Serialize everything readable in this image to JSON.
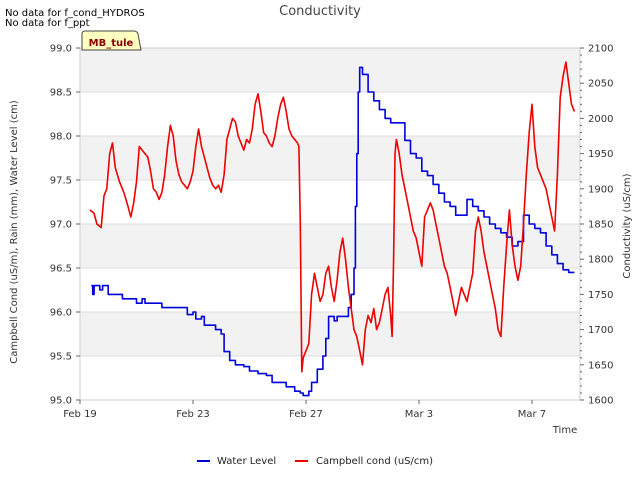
{
  "notes": [
    "No data for f_cond_HYDROS",
    "No data for f_ppt"
  ],
  "site_label": "MB_tule",
  "chart_data": {
    "type": "line",
    "title": "Conductivity",
    "xlabel": "Time",
    "ylabel_left": "Campbell Cond (uS/m), Rain (mm), Water Level (cm)",
    "ylabel_right": "Conductivity (uS/cm)",
    "x_tick_labels": [
      "Feb 19",
      "Feb 23",
      "Feb 27",
      "Mar 3",
      "Mar 7"
    ],
    "x_tick_days": [
      0,
      4,
      8,
      12,
      16
    ],
    "xlim_days": [
      0,
      17.7
    ],
    "ylim_left": [
      95.0,
      99.0
    ],
    "y_ticks_left": [
      "95.0",
      "95.5",
      "96.0",
      "96.5",
      "97.0",
      "97.5",
      "98.0",
      "98.5",
      "99.0"
    ],
    "ylim_right": [
      1600,
      2100
    ],
    "y_ticks_right": [
      "1600",
      "1650",
      "1700",
      "1750",
      "1800",
      "1850",
      "1900",
      "1950",
      "2000",
      "2050",
      "2100"
    ],
    "series": [
      {
        "name": "Water Level",
        "color": "#0000dd",
        "axis": "left",
        "points": [
          [
            0.4,
            96.3
          ],
          [
            0.45,
            96.2
          ],
          [
            0.5,
            96.3
          ],
          [
            0.6,
            96.3
          ],
          [
            0.7,
            96.25
          ],
          [
            0.8,
            96.3
          ],
          [
            0.9,
            96.3
          ],
          [
            1.0,
            96.2
          ],
          [
            1.2,
            96.2
          ],
          [
            1.5,
            96.15
          ],
          [
            1.6,
            96.15
          ],
          [
            1.8,
            96.15
          ],
          [
            2.0,
            96.1
          ],
          [
            2.2,
            96.15
          ],
          [
            2.3,
            96.1
          ],
          [
            2.5,
            96.1
          ],
          [
            2.8,
            96.1
          ],
          [
            2.9,
            96.05
          ],
          [
            3.3,
            96.05
          ],
          [
            3.6,
            96.05
          ],
          [
            3.8,
            95.97
          ],
          [
            4.0,
            96.0
          ],
          [
            4.1,
            95.92
          ],
          [
            4.3,
            95.95
          ],
          [
            4.4,
            95.85
          ],
          [
            4.6,
            95.85
          ],
          [
            4.8,
            95.8
          ],
          [
            5.0,
            95.75
          ],
          [
            5.1,
            95.55
          ],
          [
            5.3,
            95.45
          ],
          [
            5.5,
            95.4
          ],
          [
            5.8,
            95.38
          ],
          [
            6.0,
            95.33
          ],
          [
            6.3,
            95.3
          ],
          [
            6.6,
            95.28
          ],
          [
            6.8,
            95.2
          ],
          [
            7.0,
            95.2
          ],
          [
            7.3,
            95.15
          ],
          [
            7.6,
            95.1
          ],
          [
            7.8,
            95.08
          ],
          [
            7.9,
            95.05
          ],
          [
            8.0,
            95.05
          ],
          [
            8.1,
            95.1
          ],
          [
            8.2,
            95.2
          ],
          [
            8.4,
            95.35
          ],
          [
            8.6,
            95.5
          ],
          [
            8.7,
            95.7
          ],
          [
            8.8,
            95.95
          ],
          [
            9.0,
            95.9
          ],
          [
            9.1,
            95.95
          ],
          [
            9.3,
            95.95
          ],
          [
            9.5,
            96.05
          ],
          [
            9.6,
            96.2
          ],
          [
            9.7,
            96.5
          ],
          [
            9.75,
            97.2
          ],
          [
            9.8,
            97.8
          ],
          [
            9.85,
            98.5
          ],
          [
            9.9,
            98.78
          ],
          [
            10.0,
            98.7
          ],
          [
            10.2,
            98.5
          ],
          [
            10.4,
            98.4
          ],
          [
            10.6,
            98.3
          ],
          [
            10.8,
            98.2
          ],
          [
            11.0,
            98.15
          ],
          [
            11.3,
            98.15
          ],
          [
            11.5,
            97.95
          ],
          [
            11.7,
            97.8
          ],
          [
            11.9,
            97.75
          ],
          [
            12.1,
            97.6
          ],
          [
            12.3,
            97.55
          ],
          [
            12.5,
            97.45
          ],
          [
            12.7,
            97.35
          ],
          [
            12.9,
            97.25
          ],
          [
            13.1,
            97.2
          ],
          [
            13.3,
            97.1
          ],
          [
            13.5,
            97.1
          ],
          [
            13.7,
            97.28
          ],
          [
            13.9,
            97.2
          ],
          [
            14.1,
            97.15
          ],
          [
            14.3,
            97.08
          ],
          [
            14.5,
            97.0
          ],
          [
            14.7,
            96.95
          ],
          [
            14.9,
            96.9
          ],
          [
            15.1,
            96.85
          ],
          [
            15.3,
            96.75
          ],
          [
            15.5,
            96.8
          ],
          [
            15.7,
            97.1
          ],
          [
            15.9,
            97.0
          ],
          [
            16.1,
            96.95
          ],
          [
            16.3,
            96.9
          ],
          [
            16.5,
            96.75
          ],
          [
            16.7,
            96.65
          ],
          [
            16.9,
            96.55
          ],
          [
            17.1,
            96.48
          ],
          [
            17.3,
            96.45
          ],
          [
            17.5,
            96.45
          ]
        ]
      },
      {
        "name": "Campbell cond (uS/cm)",
        "color": "#ee0000",
        "axis": "right",
        "points": [
          [
            0.35,
            1870
          ],
          [
            0.5,
            1865
          ],
          [
            0.6,
            1850
          ],
          [
            0.75,
            1845
          ],
          [
            0.85,
            1890
          ],
          [
            0.95,
            1900
          ],
          [
            1.05,
            1950
          ],
          [
            1.15,
            1965
          ],
          [
            1.25,
            1930
          ],
          [
            1.4,
            1910
          ],
          [
            1.55,
            1895
          ],
          [
            1.7,
            1875
          ],
          [
            1.8,
            1860
          ],
          [
            1.9,
            1880
          ],
          [
            2.0,
            1910
          ],
          [
            2.1,
            1960
          ],
          [
            2.2,
            1955
          ],
          [
            2.3,
            1950
          ],
          [
            2.4,
            1945
          ],
          [
            2.5,
            1925
          ],
          [
            2.6,
            1900
          ],
          [
            2.7,
            1895
          ],
          [
            2.8,
            1885
          ],
          [
            2.9,
            1895
          ],
          [
            3.0,
            1920
          ],
          [
            3.1,
            1960
          ],
          [
            3.2,
            1990
          ],
          [
            3.3,
            1975
          ],
          [
            3.4,
            1940
          ],
          [
            3.5,
            1920
          ],
          [
            3.6,
            1910
          ],
          [
            3.7,
            1905
          ],
          [
            3.8,
            1900
          ],
          [
            3.9,
            1910
          ],
          [
            4.0,
            1925
          ],
          [
            4.1,
            1960
          ],
          [
            4.2,
            1985
          ],
          [
            4.3,
            1960
          ],
          [
            4.4,
            1945
          ],
          [
            4.5,
            1930
          ],
          [
            4.6,
            1915
          ],
          [
            4.7,
            1905
          ],
          [
            4.8,
            1900
          ],
          [
            4.9,
            1905
          ],
          [
            5.0,
            1895
          ],
          [
            5.1,
            1920
          ],
          [
            5.2,
            1970
          ],
          [
            5.3,
            1985
          ],
          [
            5.4,
            2000
          ],
          [
            5.5,
            1995
          ],
          [
            5.6,
            1975
          ],
          [
            5.7,
            1965
          ],
          [
            5.8,
            1955
          ],
          [
            5.9,
            1970
          ],
          [
            6.0,
            1965
          ],
          [
            6.1,
            1985
          ],
          [
            6.2,
            2020
          ],
          [
            6.3,
            2035
          ],
          [
            6.4,
            2010
          ],
          [
            6.5,
            1980
          ],
          [
            6.6,
            1975
          ],
          [
            6.7,
            1965
          ],
          [
            6.8,
            1960
          ],
          [
            6.9,
            1975
          ],
          [
            7.0,
            2000
          ],
          [
            7.1,
            2020
          ],
          [
            7.2,
            2030
          ],
          [
            7.3,
            2010
          ],
          [
            7.4,
            1985
          ],
          [
            7.5,
            1975
          ],
          [
            7.6,
            1970
          ],
          [
            7.7,
            1965
          ],
          [
            7.75,
            1960
          ],
          [
            7.8,
            1850
          ],
          [
            7.85,
            1640
          ],
          [
            7.9,
            1660
          ],
          [
            8.0,
            1670
          ],
          [
            8.1,
            1680
          ],
          [
            8.2,
            1750
          ],
          [
            8.3,
            1780
          ],
          [
            8.4,
            1760
          ],
          [
            8.5,
            1740
          ],
          [
            8.6,
            1750
          ],
          [
            8.7,
            1780
          ],
          [
            8.8,
            1790
          ],
          [
            8.9,
            1760
          ],
          [
            9.0,
            1740
          ],
          [
            9.1,
            1770
          ],
          [
            9.2,
            1810
          ],
          [
            9.3,
            1830
          ],
          [
            9.4,
            1800
          ],
          [
            9.5,
            1760
          ],
          [
            9.6,
            1730
          ],
          [
            9.7,
            1700
          ],
          [
            9.8,
            1690
          ],
          [
            9.9,
            1670
          ],
          [
            10.0,
            1650
          ],
          [
            10.1,
            1700
          ],
          [
            10.2,
            1720
          ],
          [
            10.3,
            1710
          ],
          [
            10.4,
            1730
          ],
          [
            10.5,
            1700
          ],
          [
            10.6,
            1710
          ],
          [
            10.7,
            1730
          ],
          [
            10.8,
            1750
          ],
          [
            10.9,
            1760
          ],
          [
            11.0,
            1720
          ],
          [
            11.05,
            1690
          ],
          [
            11.1,
            1800
          ],
          [
            11.15,
            1950
          ],
          [
            11.2,
            1970
          ],
          [
            11.3,
            1950
          ],
          [
            11.4,
            1920
          ],
          [
            11.5,
            1900
          ],
          [
            11.6,
            1880
          ],
          [
            11.7,
            1860
          ],
          [
            11.8,
            1840
          ],
          [
            11.9,
            1830
          ],
          [
            12.0,
            1810
          ],
          [
            12.1,
            1790
          ],
          [
            12.2,
            1860
          ],
          [
            12.3,
            1870
          ],
          [
            12.4,
            1880
          ],
          [
            12.5,
            1870
          ],
          [
            12.6,
            1850
          ],
          [
            12.7,
            1830
          ],
          [
            12.8,
            1810
          ],
          [
            12.9,
            1790
          ],
          [
            13.0,
            1780
          ],
          [
            13.1,
            1760
          ],
          [
            13.2,
            1740
          ],
          [
            13.3,
            1720
          ],
          [
            13.4,
            1740
          ],
          [
            13.5,
            1760
          ],
          [
            13.6,
            1750
          ],
          [
            13.7,
            1740
          ],
          [
            13.8,
            1760
          ],
          [
            13.9,
            1780
          ],
          [
            14.0,
            1840
          ],
          [
            14.1,
            1860
          ],
          [
            14.2,
            1840
          ],
          [
            14.3,
            1810
          ],
          [
            14.4,
            1790
          ],
          [
            14.5,
            1770
          ],
          [
            14.6,
            1750
          ],
          [
            14.7,
            1730
          ],
          [
            14.8,
            1700
          ],
          [
            14.9,
            1690
          ],
          [
            15.0,
            1760
          ],
          [
            15.1,
            1820
          ],
          [
            15.2,
            1870
          ],
          [
            15.3,
            1820
          ],
          [
            15.4,
            1790
          ],
          [
            15.5,
            1770
          ],
          [
            15.6,
            1790
          ],
          [
            15.7,
            1850
          ],
          [
            15.8,
            1920
          ],
          [
            15.9,
            1980
          ],
          [
            16.0,
            2020
          ],
          [
            16.1,
            1960
          ],
          [
            16.2,
            1930
          ],
          [
            16.3,
            1920
          ],
          [
            16.4,
            1910
          ],
          [
            16.5,
            1900
          ],
          [
            16.6,
            1880
          ],
          [
            16.7,
            1860
          ],
          [
            16.8,
            1840
          ],
          [
            16.9,
            1920
          ],
          [
            17.0,
            2030
          ],
          [
            17.1,
            2060
          ],
          [
            17.2,
            2080
          ],
          [
            17.3,
            2050
          ],
          [
            17.4,
            2020
          ],
          [
            17.5,
            2010
          ]
        ]
      }
    ],
    "legend_position": "bottom-center"
  }
}
